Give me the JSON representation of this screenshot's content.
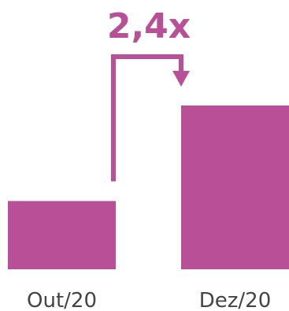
{
  "chart_data": {
    "type": "bar",
    "categories": [
      "Out/20",
      "Dez/20"
    ],
    "values": [
      1,
      2.4
    ],
    "ylim": [
      0,
      2.4
    ],
    "grid": false,
    "annotation": {
      "text": "2,4x",
      "from": "Out/20",
      "to": "Dez/20"
    }
  },
  "colors": {
    "bar": "#b94f96",
    "text": "#444444"
  }
}
